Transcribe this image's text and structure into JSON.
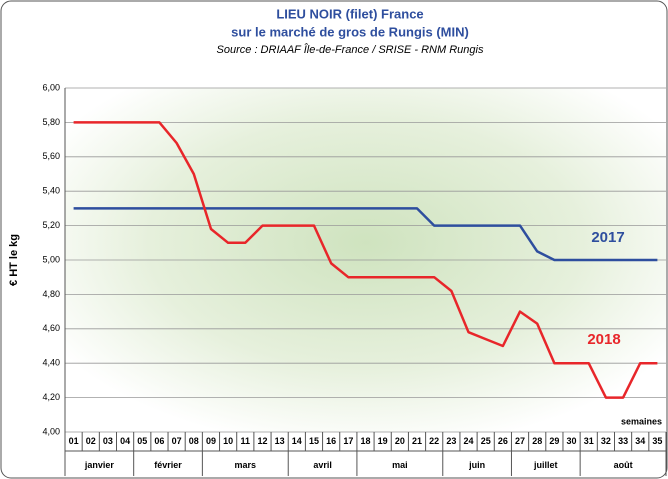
{
  "chart_data": {
    "type": "line",
    "title": "LIEU NOIR (filet) France",
    "subtitle": "sur le marché de gros de Rungis (MIN)",
    "source": "Source : DRIAAF Île-de-France / SRISE - RNM Rungis",
    "y_label": "€ HT le kg",
    "x_annotation": "semaines",
    "categories": [
      "01",
      "02",
      "03",
      "04",
      "05",
      "06",
      "07",
      "08",
      "09",
      "10",
      "11",
      "12",
      "13",
      "14",
      "15",
      "16",
      "17",
      "18",
      "19",
      "20",
      "21",
      "22",
      "23",
      "24",
      "25",
      "26",
      "27",
      "28",
      "29",
      "30",
      "31",
      "32",
      "33",
      "34",
      "35"
    ],
    "months": [
      {
        "name": "janvier",
        "first": "01",
        "last": "04"
      },
      {
        "name": "février",
        "first": "05",
        "last": "08"
      },
      {
        "name": "mars",
        "first": "09",
        "last": "13"
      },
      {
        "name": "avril",
        "first": "14",
        "last": "17"
      },
      {
        "name": "mai",
        "first": "18",
        "last": "22"
      },
      {
        "name": "juin",
        "first": "23",
        "last": "26"
      },
      {
        "name": "juillet",
        "first": "27",
        "last": "30"
      },
      {
        "name": "août",
        "first": "31",
        "last": "35"
      }
    ],
    "series": [
      {
        "name": "2017",
        "color": "#2e4e9e",
        "values": [
          5.3,
          5.3,
          5.3,
          5.3,
          5.3,
          5.3,
          5.3,
          5.3,
          5.3,
          5.3,
          5.3,
          5.3,
          5.3,
          5.3,
          5.3,
          5.3,
          5.3,
          5.3,
          5.3,
          5.3,
          5.3,
          5.2,
          5.2,
          5.2,
          5.2,
          5.2,
          5.2,
          5.05,
          5.0,
          5.0,
          5.0,
          5.0,
          5.0,
          5.0,
          5.0
        ]
      },
      {
        "name": "2018",
        "color": "#e8262a",
        "values": [
          5.8,
          5.8,
          5.8,
          5.8,
          5.8,
          5.8,
          5.68,
          5.5,
          5.18,
          5.1,
          5.1,
          5.2,
          5.2,
          5.2,
          5.2,
          4.98,
          4.9,
          4.9,
          4.9,
          4.9,
          4.9,
          4.9,
          4.82,
          4.58,
          4.54,
          4.5,
          4.7,
          4.63,
          4.4,
          4.4,
          4.4,
          4.2,
          4.2,
          4.4,
          4.4
        ]
      }
    ],
    "ylim": [
      4,
      6
    ],
    "yticks": [
      {
        "value": 4,
        "label": "4,00"
      },
      {
        "value": 4.2,
        "label": "4,20"
      },
      {
        "value": 4.4,
        "label": "4,40"
      },
      {
        "value": 4.6,
        "label": "4,60"
      },
      {
        "value": 4.8,
        "label": "4,80"
      },
      {
        "value": 5,
        "label": "5,00"
      },
      {
        "value": 5.2,
        "label": "5,20"
      },
      {
        "value": 5.4,
        "label": "5,40"
      },
      {
        "value": 5.6,
        "label": "5,60"
      },
      {
        "value": 5.8,
        "label": "5,80"
      },
      {
        "value": 6,
        "label": "6,00"
      }
    ],
    "grid": true
  }
}
